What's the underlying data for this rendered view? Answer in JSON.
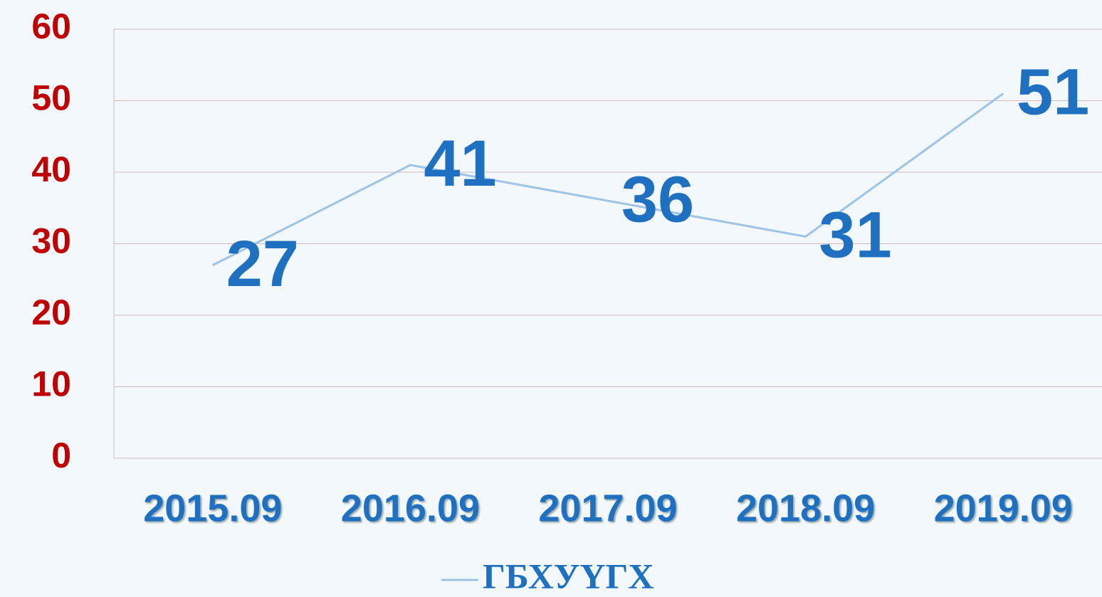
{
  "chart_data": {
    "type": "line",
    "categories": [
      "2015.09",
      "2016.09",
      "2017.09",
      "2018.09",
      "2019.09"
    ],
    "series": [
      {
        "name": "ГБХУҮГХ",
        "color": "#9dc3e6",
        "values": [
          27,
          41,
          36,
          31,
          51
        ]
      }
    ],
    "ylim": [
      0,
      60
    ],
    "yticks": [
      0,
      10,
      20,
      30,
      40,
      50,
      60
    ],
    "grid": true,
    "legend": "bottom",
    "label_color": "#1f70c1",
    "tick_color": "#c00000"
  }
}
